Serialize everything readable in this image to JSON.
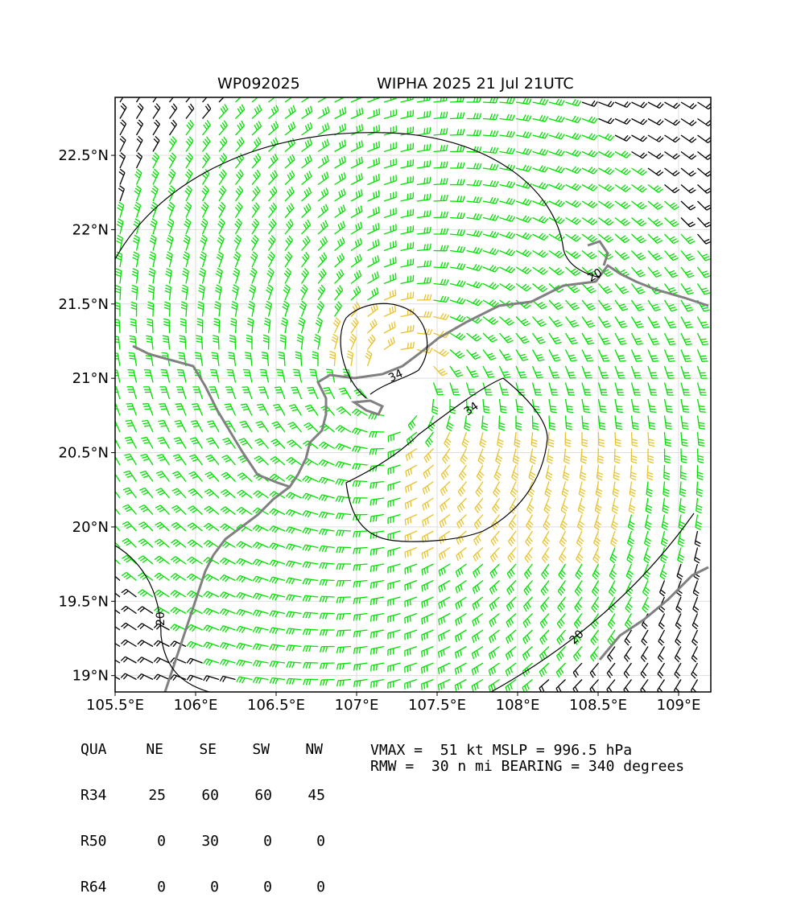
{
  "header": {
    "storm_id": "WP092025",
    "storm_title": "WIPHA 2025 21 Jul 21UTC"
  },
  "axes": {
    "lon_ticks": [
      "105.5°E",
      "106°E",
      "106.5°E",
      "107°E",
      "107.5°E",
      "108°E",
      "108.5°E",
      "109°E"
    ],
    "lat_ticks": [
      "22.5°N",
      "22°N",
      "21.5°N",
      "21°N",
      "20.5°N",
      "20°N",
      "19.5°N",
      "19°N"
    ],
    "lon_values": [
      105.5,
      106.0,
      106.5,
      107.0,
      107.5,
      108.0,
      108.5,
      109.0
    ],
    "lat_values": [
      22.5,
      22.0,
      21.5,
      21.0,
      20.5,
      20.0,
      19.5,
      19.0
    ],
    "lon_range": [
      105.5,
      109.2
    ],
    "lat_range": [
      18.89,
      22.89
    ]
  },
  "contours": [
    {
      "label": "20"
    },
    {
      "label": "20"
    },
    {
      "label": "20"
    },
    {
      "label": "34"
    },
    {
      "label": "34"
    }
  ],
  "colors": {
    "below_34kt": "#000000",
    "r34_band": "#00e000",
    "r50_band": "#e8c22a",
    "coastline": "#808080",
    "contour": "#000000"
  },
  "wind_radii": {
    "columns": [
      "QUA",
      "NE",
      "SE",
      "SW",
      "NW"
    ],
    "rows": [
      {
        "name": "R34",
        "values": [
          "25",
          "60",
          "60",
          "45"
        ]
      },
      {
        "name": "R50",
        "values": [
          "0",
          "30",
          "0",
          "0"
        ]
      },
      {
        "name": "R64",
        "values": [
          "0",
          "0",
          "0",
          "0"
        ]
      }
    ]
  },
  "stats": {
    "line1": "VMAX =  51 kt MSLP = 996.5 hPa",
    "line2": "RMW =  30 n mi BEARING = 340 degrees"
  },
  "storm_center": {
    "lon": 107.25,
    "lat": 20.95
  }
}
